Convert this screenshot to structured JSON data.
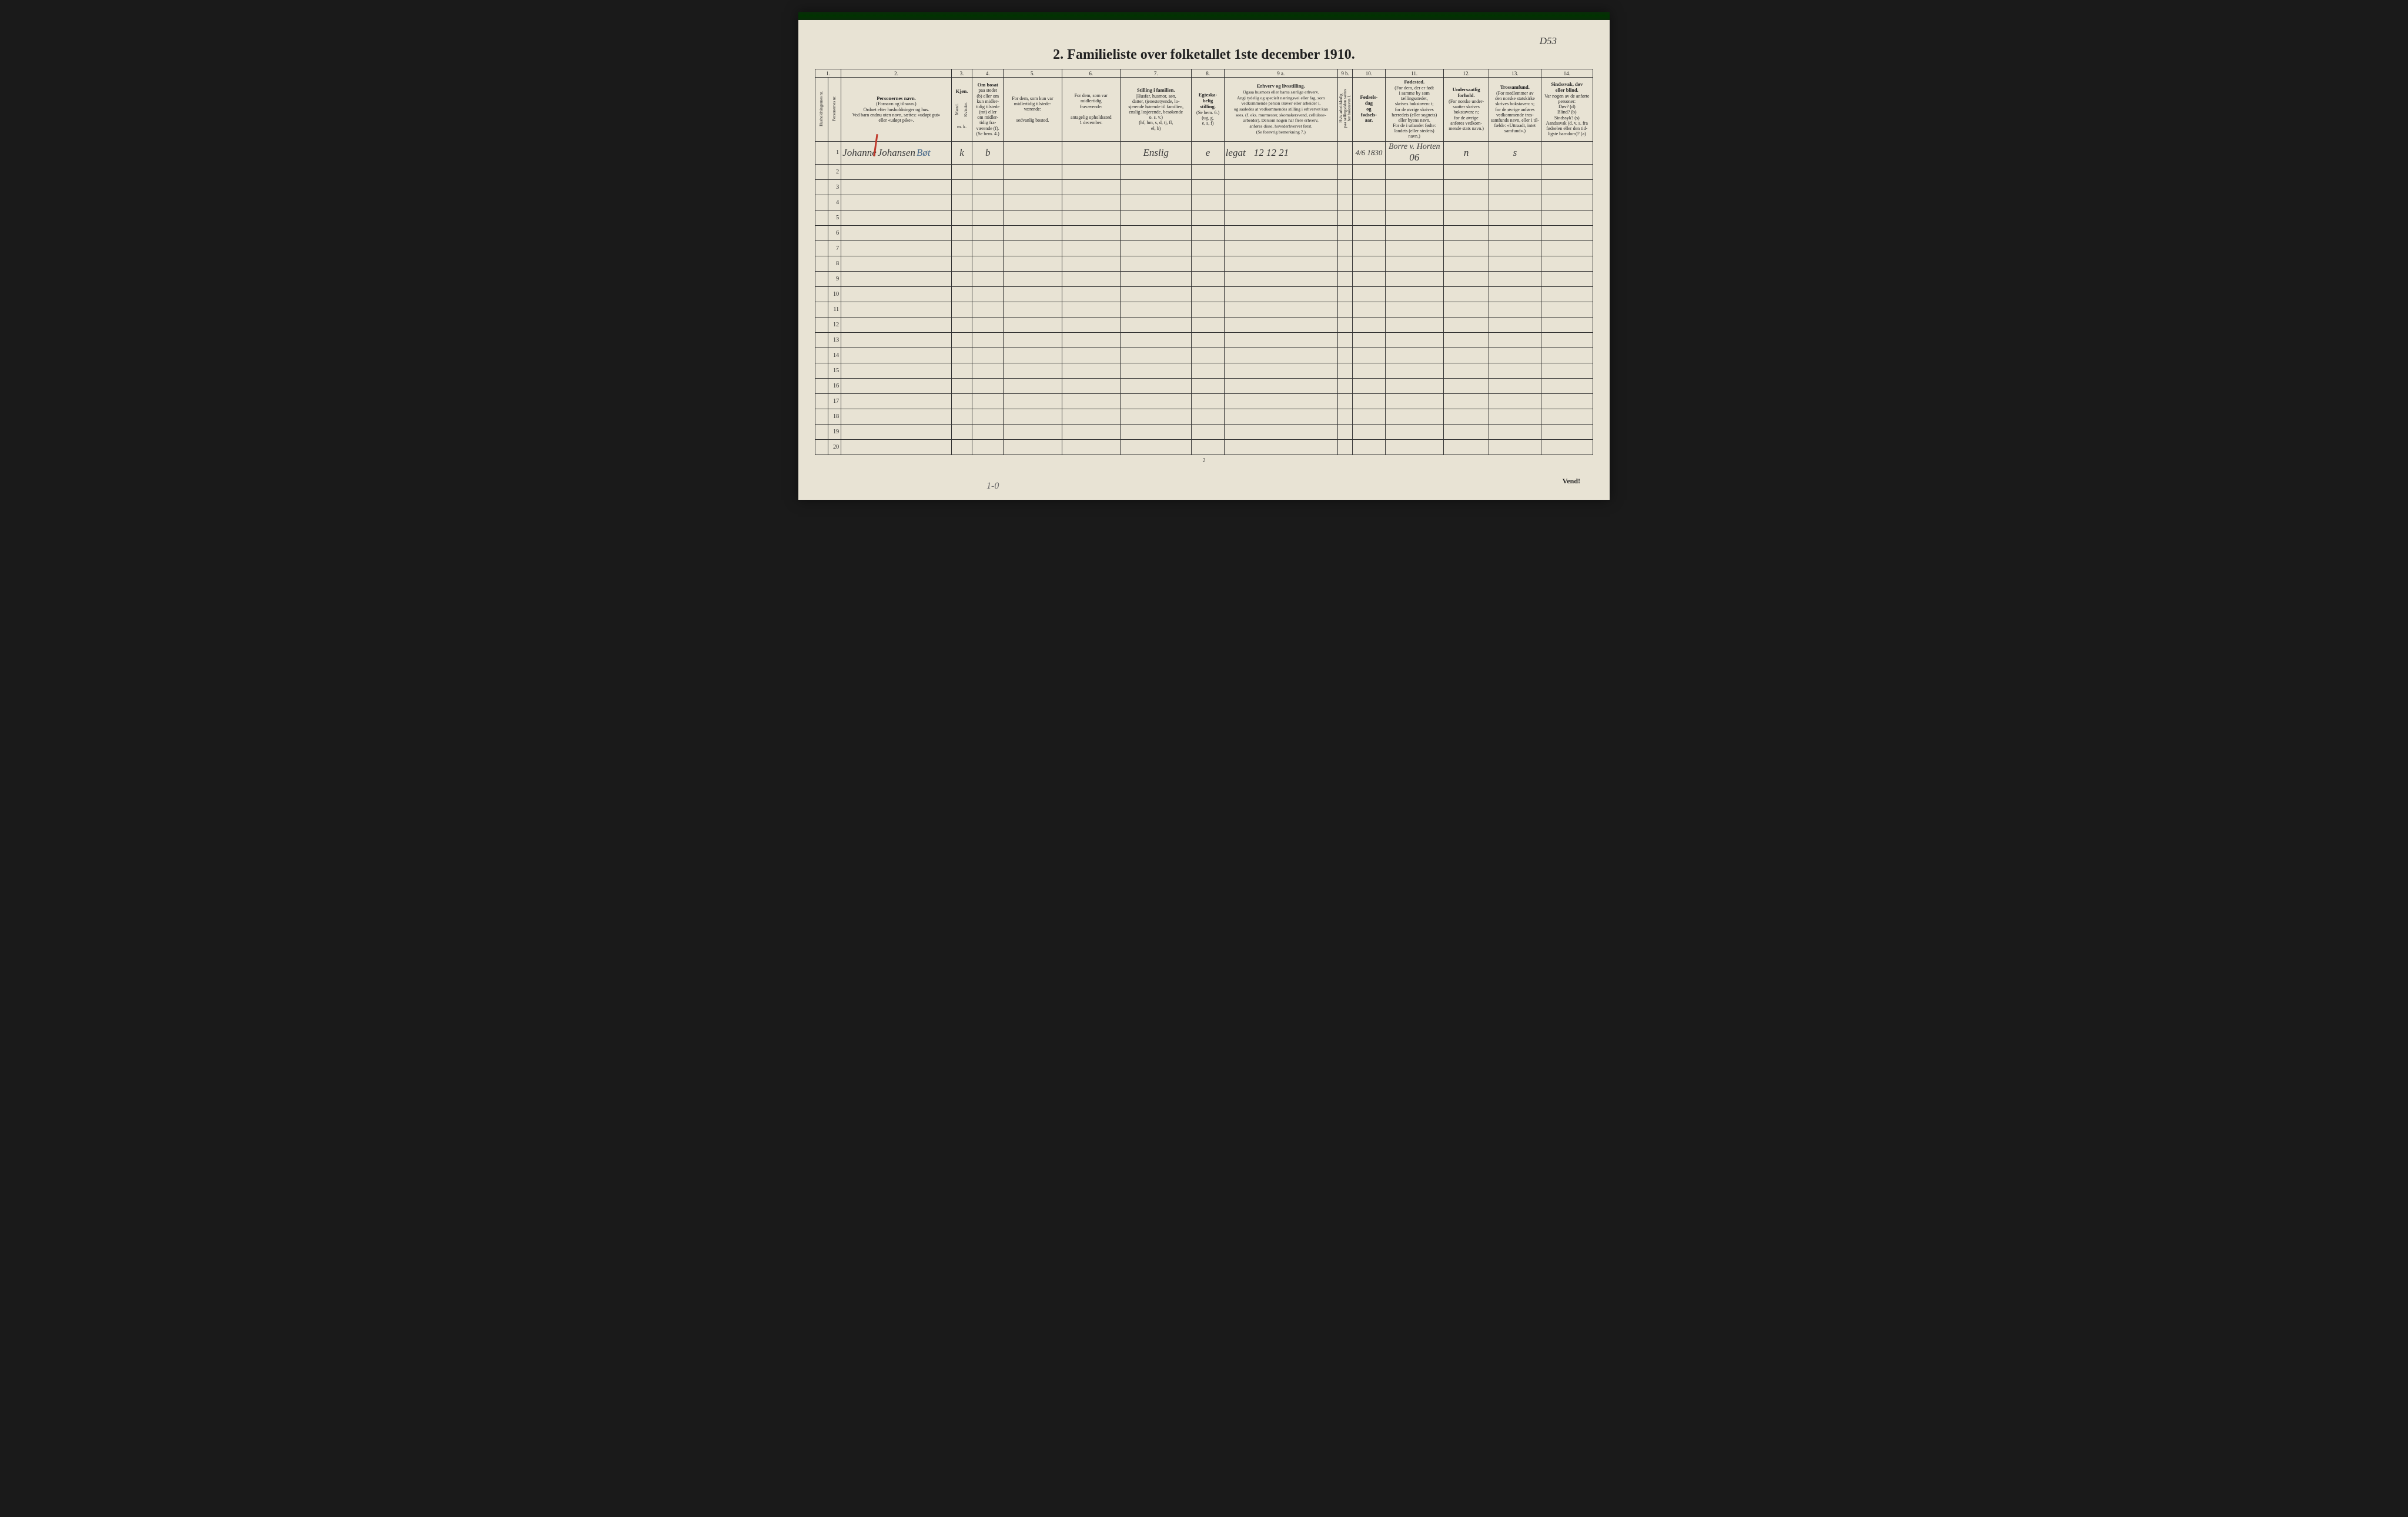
{
  "annotation_topright": "D53",
  "title": "2.  Familieliste over folketallet 1ste december 1910.",
  "col_numbers": [
    "1.",
    "2.",
    "3.",
    "4.",
    "5.",
    "6.",
    "7.",
    "8.",
    "9 a.",
    "9 b.",
    "10.",
    "11.",
    "12.",
    "13.",
    "14."
  ],
  "headers": {
    "c1a": "Husholdningernes nr.",
    "c1b": "Personernes nr.",
    "c2_title": "Personernes navn.",
    "c2_body": "(Fornavn og tilnavn.)\nOrdnet efter husholdninger og hus.\nVed barn endnu uten navn, sættes: «udøpt gut»\neller «udøpt pike».",
    "c3_title": "Kjøn.",
    "c3_m": "Mænd.",
    "c3_k": "Kvinder.",
    "c3_foot": "m.  k.",
    "c4_title": "Om bosat",
    "c4_body": "paa stedet\n(b) eller om\nkun midler-\ntidig tilstede\n(mt) eller\nom midler-\ntidig fra-\nværende (f).\n(Se bem. 4.)",
    "c5_body": "For dem, som kun var\nmidlertidig tilstede-\nværende:\n\nsedvanlig bosted.",
    "c6_body": "For dem, som var\nmidlertidig\nfraværende:\n\nantagelig opholdssted\n1 december.",
    "c7_title": "Stilling i familien.",
    "c7_body": "(Husfar, husmor, søn,\ndatter, tjenestetyende, lo-\nsjerende hørende til familien,\nenslig losjerende, besøkende\no. s. v.)\n(hf, hm, s, d, tj, fl,\nel, b)",
    "c8_title": "Egteska-\nbelig\nstilling.",
    "c8_body": "(Se bem. 6.)\n(ug, g,\ne, s, f)",
    "c9a_title": "Erhverv og livsstilling.",
    "c9a_body": "Ogsaa husmors eller barns særlige erhverv.\nAngi tydelig og specielt næringsvei eller fag, som\nvedkommende person utøver eller arbeider i,\nog saaledes at vedkommendes stilling i erhvervet kan\nsees. (f. eks. murmester, skomakersvend, cellulose-\narbeider). Dersom nogen har flere erhverv,\nanføres disse, hovederhvervet først.\n(Se forøvrig bemerkning 7.)",
    "c9b": "Hvis arbeidsledig\npaa tællingstiden sættes\nher bokstaven l.",
    "c10_title": "Fødsels-\ndag\nog\nfødsels-\naar.",
    "c11_title": "Fødested.",
    "c11_body": "(For dem, der er født\ni samme by som\ntællingsstedet,\nskrives bokstaven: t;\nfor de øvrige skrives\nherredets (eller sognets)\neller byens navn.\nFor de i utlandet fødte:\nlandets (eller stedets)\nnavn.)",
    "c12_title": "Undersaatlig\nforhold.",
    "c12_body": "(For norske under-\nsaatter skrives\nbokstaven: n;\nfor de øvrige\nanføres vedkom-\nmende stats navn.)",
    "c13_title": "Trossamfund.",
    "c13_body": "(For medlemmer av\nden norske statskirke\nskrives bokstaven: s;\nfor de øvrige anføres\nvedkommende tros-\nsamfunds navn, eller i til-\nfælde: «Uttraadt, intet\nsamfund».)",
    "c14_title": "Sindssvak, døv\neller blind.",
    "c14_body": "Var nogen av de anførte\npersoner:\nDøv?        (d)\nBlind?      (b)\nSindssyk?  (s)\nAandssvak (d. v. s. fra\nfødselen eller den tid-\nligste barndom)?  (a)"
  },
  "row1": {
    "name_first": "Johanne",
    "name_last": "Johansen",
    "name_extra": "Bøt",
    "kjon": "k",
    "bosat": "b",
    "stilling": "Enslig",
    "egteskab": "e",
    "erhverv": "legat",
    "erhverv_num": "12 12 21",
    "fodselsdag": "4/6 1830",
    "fodested": "Borre v. Horten",
    "fodested_extra": "06",
    "undersaat": "n",
    "trossamfund": "s"
  },
  "row_count": 20,
  "footer_page": "2",
  "vend": "Vend!",
  "bottom_annotation": "1-0",
  "colors": {
    "paper": "#e8e3d4",
    "ink": "#222222",
    "handwriting": "#3a3a3a",
    "handwriting_blue": "#4a6a8a",
    "red_mark": "#c0392b",
    "border": "#333333"
  },
  "col_widths_pct": [
    2,
    2,
    17,
    3.2,
    4.8,
    9,
    9,
    11,
    5,
    17.5,
    2.3,
    5,
    9,
    7,
    8,
    8
  ]
}
